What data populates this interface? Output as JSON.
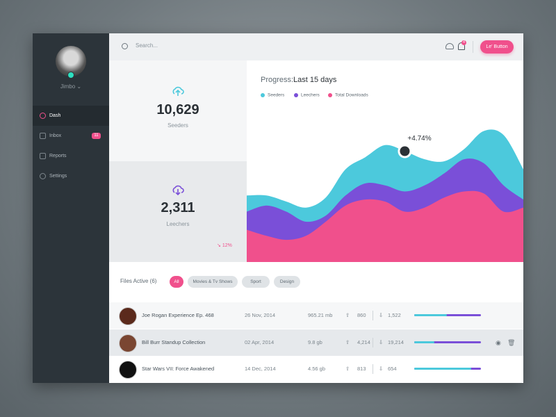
{
  "sidebar": {
    "user_name": "Jimbo",
    "nav": [
      {
        "label": "Dash"
      },
      {
        "label": "Inbox",
        "badge": 11
      },
      {
        "label": "Reports"
      },
      {
        "label": "Settings"
      }
    ]
  },
  "topbar": {
    "search_placeholder": "Search...",
    "notification_count": 4,
    "button": "Le' Button"
  },
  "stats": [
    {
      "value": "10,629",
      "label": "Seeders"
    },
    {
      "value": "2,311",
      "label": "Leechers",
      "change": "12%"
    }
  ],
  "chart_data": {
    "type": "area",
    "title": "Progress:",
    "subtitle": "Last 15 days",
    "x": [
      0,
      1,
      2,
      3,
      4,
      5,
      6,
      7,
      8,
      9,
      10,
      11,
      12,
      13,
      14
    ],
    "xlim": [
      0,
      14
    ],
    "ylim": [
      0,
      100
    ],
    "series": [
      {
        "name": "Seeders",
        "color": "#4cc9dc",
        "values": [
          33,
          33,
          30,
          27,
          32,
          46,
          52,
          58,
          55,
          51,
          50,
          56,
          65,
          63,
          46
        ]
      },
      {
        "name": "Leechers",
        "color": "#7a4fd8",
        "values": [
          25,
          28,
          25,
          20,
          23,
          33,
          39,
          38,
          35,
          38,
          44,
          51,
          49,
          38,
          31
        ]
      },
      {
        "name": "Total Downloads",
        "color": "#f0508c",
        "values": [
          16,
          13,
          11,
          13,
          20,
          28,
          31,
          30,
          25,
          27,
          32,
          35,
          34,
          25,
          27
        ]
      }
    ],
    "annotation": {
      "text": "+4.74%",
      "x": 8
    }
  },
  "files": {
    "title": "Files Active (6)",
    "filters": [
      "All",
      "Movies & Tv Shows",
      "Sport",
      "Design"
    ],
    "rows": [
      {
        "name": "Joe Rogan Experience Ep. 468",
        "date": "26 Nov, 2014",
        "size": "965.21 mb",
        "uploads": "860",
        "downloads": "1,522",
        "progress": 49
      },
      {
        "name": "Bill Burr Standup Collection",
        "date": "02 Apr, 2014",
        "size": "9.8 gb",
        "uploads": "4,214",
        "downloads": "19,214",
        "progress": 30
      },
      {
        "name": "Star Wars VII: Force Awakened",
        "date": "14 Dec, 2014",
        "size": "4.56 gb",
        "uploads": "813",
        "downloads": "654",
        "progress": 85
      }
    ]
  }
}
